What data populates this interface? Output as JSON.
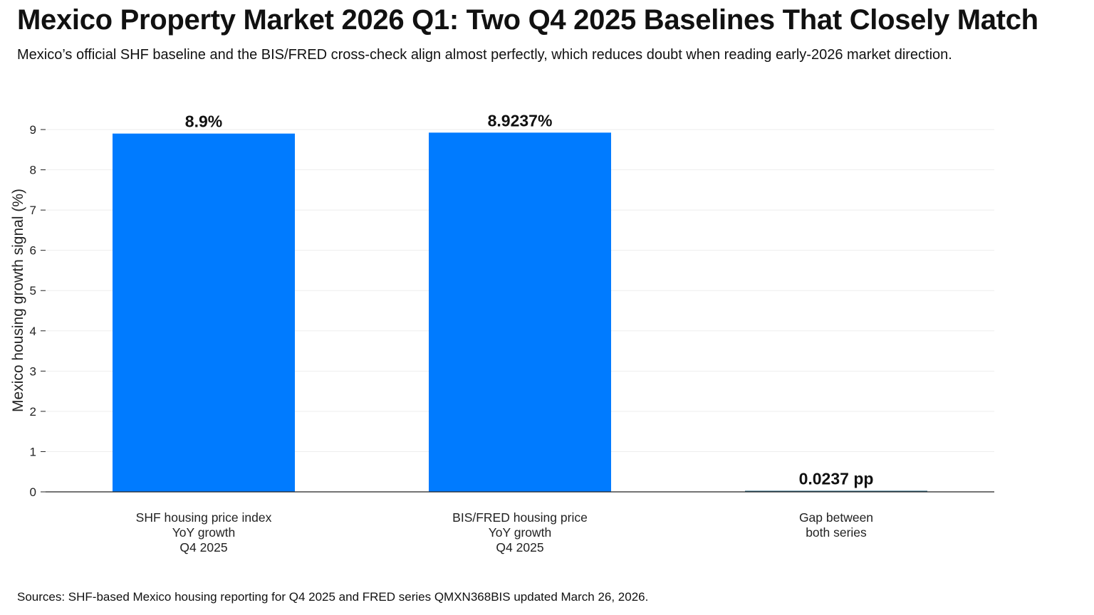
{
  "title": "Mexico Property Market 2026 Q1: Two Q4 2025 Baselines That Closely Match",
  "subtitle": "Mexico’s official SHF baseline and the BIS/FRED cross-check align almost perfectly, which reduces doubt when reading early-2026 market direction.",
  "source": "Sources: SHF-based Mexico housing reporting for Q4 2025 and FRED series QMXN368BIS updated March 26, 2026.",
  "colors": {
    "bar_primary": "#007bff",
    "bar_gap": "#1f5f7a",
    "grid": "#eeeeee",
    "axis": "#222222"
  },
  "chart_data": {
    "type": "bar",
    "categories": [
      [
        "SHF housing price index",
        "YoY growth",
        "Q4 2025"
      ],
      [
        "BIS/FRED housing price",
        "YoY growth",
        "Q4 2025"
      ],
      [
        "Gap between",
        "both series"
      ]
    ],
    "values": [
      8.9,
      8.9237,
      0.0237
    ],
    "data_labels": [
      "8.9%",
      "8.9237%",
      "0.0237 pp"
    ],
    "ylabel": "Mexico housing growth signal (%)",
    "xlabel": "",
    "ylim": [
      0,
      9
    ],
    "yticks": [
      0,
      1,
      2,
      3,
      4,
      5,
      6,
      7,
      8,
      9
    ],
    "grid": true,
    "legend": false
  }
}
